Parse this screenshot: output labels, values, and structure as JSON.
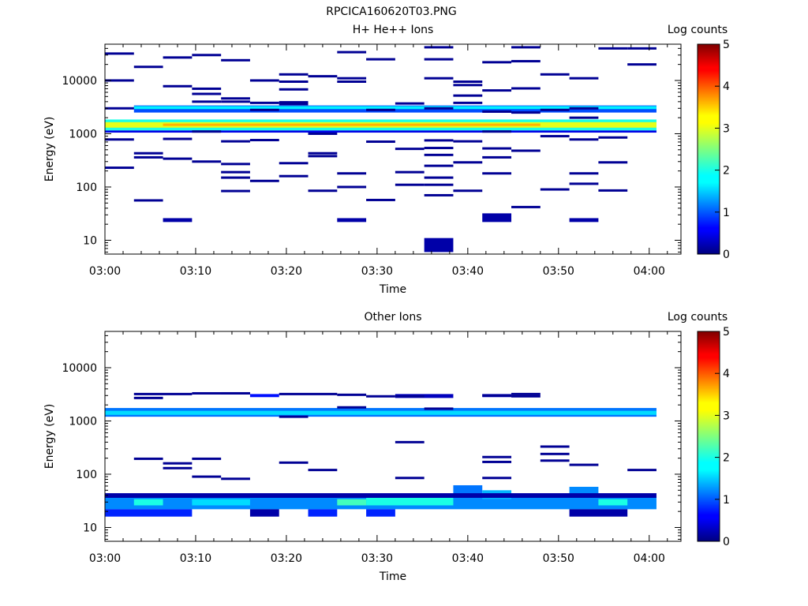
{
  "figure_title": "RPCICA160620T03.PNG",
  "chart_data": [
    {
      "type": "heatmap",
      "title": "H+ He++ Ions",
      "xlabel": "Time",
      "ylabel": "Energy (eV)",
      "x_ticks": [
        "03:00",
        "03:10",
        "03:20",
        "03:30",
        "03:40",
        "03:50",
        "04:00"
      ],
      "y_scale": "log",
      "y_ticks": [
        10,
        100,
        1000,
        10000
      ],
      "y_tick_labels": [
        "10",
        "100",
        "1000",
        "10000"
      ],
      "ylim_eV": [
        5.5,
        48000
      ],
      "colorbar_label": "Log counts",
      "colorbar_range": [
        0,
        5
      ],
      "colorbar_ticks": [
        "0",
        "1",
        "2",
        "3",
        "4",
        "5"
      ],
      "time_bins_start_min": [
        0,
        3.2,
        6.4,
        9.6,
        12.8,
        16,
        19.2,
        22.4,
        25.6,
        28.8,
        32,
        35.2,
        38.4,
        41.6,
        44.8,
        48,
        51.2,
        54.4,
        57.6
      ],
      "bin_width_min": 3.2,
      "cells": [
        {
          "e_lo": 1150,
          "e_hi": 1850,
          "v": 2.0,
          "span": [
            0,
            19
          ]
        },
        {
          "e_lo": 1300,
          "e_hi": 1650,
          "v": 3.0,
          "span": [
            0,
            19
          ]
        },
        {
          "e_lo": 1400,
          "e_hi": 1550,
          "v": 3.5,
          "span": [
            2,
            15
          ]
        },
        {
          "e_lo": 2500,
          "e_hi": 3400,
          "v": 1.0,
          "span": [
            1,
            19
          ]
        },
        {
          "e_lo": 2900,
          "e_hi": 3300,
          "v": 1.8,
          "span": [
            1,
            19
          ]
        },
        {
          "e_lo": 1050,
          "e_hi": 1150,
          "v": 0.5,
          "span": [
            0,
            19
          ]
        },
        {
          "e_lo": 22,
          "e_hi": 26,
          "v": 0.2,
          "span": [
            2,
            3
          ]
        },
        {
          "e_lo": 22,
          "e_hi": 26,
          "v": 0.2,
          "span": [
            8,
            9
          ]
        },
        {
          "e_lo": 22,
          "e_hi": 32,
          "v": 0.2,
          "span": [
            13,
            14
          ]
        },
        {
          "e_lo": 22,
          "e_hi": 26,
          "v": 0.2,
          "span": [
            16,
            17
          ]
        },
        {
          "e_lo": 6,
          "e_hi": 11,
          "v": 0.2,
          "span": [
            11,
            12
          ]
        }
      ],
      "lines_eV": [
        32000,
        10000,
        3000,
        780,
        230,
        18000,
        56,
        430,
        360,
        27000,
        7800,
        800,
        340,
        30000,
        7000,
        5600,
        4000,
        1100,
        300,
        24000,
        4600,
        4000,
        720,
        270,
        190,
        150,
        84,
        3800,
        2800,
        130,
        10000,
        760,
        13000,
        9500,
        6800,
        3600,
        3900,
        280,
        160,
        85,
        430,
        380,
        12000,
        1000,
        34000,
        11000,
        9500,
        180,
        100,
        25000,
        2800,
        710,
        57,
        3700,
        520,
        190,
        110,
        42000,
        25000,
        11000,
        3000,
        750,
        540,
        400,
        250,
        150,
        110,
        70,
        9500,
        8200,
        5200,
        3800,
        720,
        290,
        85,
        22000,
        6500,
        2600,
        1100,
        530,
        360,
        180,
        42000,
        23000,
        7100,
        2500,
        480,
        42,
        13000,
        2800,
        900,
        90,
        11000,
        2000,
        180,
        115,
        3000,
        780,
        40000,
        850,
        290,
        86,
        20000,
        40000
      ],
      "lines_t": [
        [
          0,
          1
        ],
        [
          0,
          1
        ],
        [
          0,
          1
        ],
        [
          0,
          1
        ],
        [
          0,
          1
        ],
        [
          1,
          2
        ],
        [
          1,
          2
        ],
        [
          1,
          2
        ],
        [
          1,
          2
        ],
        [
          2,
          3
        ],
        [
          2,
          3
        ],
        [
          2,
          3
        ],
        [
          2,
          3
        ],
        [
          3,
          4
        ],
        [
          3,
          4
        ],
        [
          3,
          4
        ],
        [
          3,
          4
        ],
        [
          3,
          4
        ],
        [
          3,
          4
        ],
        [
          4,
          5
        ],
        [
          4,
          5
        ],
        [
          4,
          5
        ],
        [
          4,
          5
        ],
        [
          4,
          5
        ],
        [
          4,
          5
        ],
        [
          4,
          5
        ],
        [
          4,
          5
        ],
        [
          5,
          6
        ],
        [
          5,
          6
        ],
        [
          5,
          6
        ],
        [
          5,
          6
        ],
        [
          5,
          6
        ],
        [
          6,
          7
        ],
        [
          6,
          7
        ],
        [
          6,
          7
        ],
        [
          6,
          7
        ],
        [
          6,
          7
        ],
        [
          6,
          7
        ],
        [
          6,
          7
        ],
        [
          7,
          8
        ],
        [
          7,
          8
        ],
        [
          7,
          8
        ],
        [
          7,
          8
        ],
        [
          7,
          8
        ],
        [
          8,
          9
        ],
        [
          8,
          9
        ],
        [
          8,
          9
        ],
        [
          8,
          9
        ],
        [
          8,
          9
        ],
        [
          9,
          10
        ],
        [
          9,
          10
        ],
        [
          9,
          10
        ],
        [
          9,
          10
        ],
        [
          10,
          11
        ],
        [
          10,
          11
        ],
        [
          10,
          11
        ],
        [
          10,
          11
        ],
        [
          11,
          12
        ],
        [
          11,
          12
        ],
        [
          11,
          12
        ],
        [
          11,
          12
        ],
        [
          11,
          12
        ],
        [
          11,
          12
        ],
        [
          11,
          12
        ],
        [
          11,
          12
        ],
        [
          11,
          12
        ],
        [
          11,
          12
        ],
        [
          11,
          12
        ],
        [
          12,
          13
        ],
        [
          12,
          13
        ],
        [
          12,
          13
        ],
        [
          12,
          13
        ],
        [
          12,
          13
        ],
        [
          12,
          13
        ],
        [
          12,
          13
        ],
        [
          13,
          14
        ],
        [
          13,
          14
        ],
        [
          13,
          14
        ],
        [
          13,
          14
        ],
        [
          13,
          14
        ],
        [
          13,
          14
        ],
        [
          13,
          14
        ],
        [
          14,
          15
        ],
        [
          14,
          15
        ],
        [
          14,
          15
        ],
        [
          14,
          15
        ],
        [
          14,
          15
        ],
        [
          14,
          15
        ],
        [
          15,
          16
        ],
        [
          15,
          16
        ],
        [
          15,
          16
        ],
        [
          15,
          16
        ],
        [
          16,
          17
        ],
        [
          16,
          17
        ],
        [
          16,
          17
        ],
        [
          16,
          17
        ],
        [
          16,
          17
        ],
        [
          16,
          17
        ],
        [
          17,
          18
        ],
        [
          17,
          18
        ],
        [
          17,
          18
        ],
        [
          17,
          18
        ],
        [
          18,
          19
        ],
        [
          18,
          19
        ]
      ]
    },
    {
      "type": "heatmap",
      "title": "Other Ions",
      "xlabel": "Time",
      "ylabel": "Energy (eV)",
      "x_ticks": [
        "03:00",
        "03:10",
        "03:20",
        "03:30",
        "03:40",
        "03:50",
        "04:00"
      ],
      "y_scale": "log",
      "y_ticks": [
        10,
        100,
        1000,
        10000
      ],
      "y_tick_labels": [
        "10",
        "100",
        "1000",
        "10000"
      ],
      "ylim_eV": [
        5.5,
        48000
      ],
      "colorbar_label": "Log counts",
      "colorbar_range": [
        0,
        5
      ],
      "colorbar_ticks": [
        "0",
        "1",
        "2",
        "3",
        "4",
        "5"
      ],
      "time_bins_start_min": [
        0,
        3.2,
        6.4,
        9.6,
        12.8,
        16,
        19.2,
        22.4,
        25.6,
        28.8,
        32,
        35.2,
        38.4,
        41.6,
        44.8,
        48,
        51.2,
        54.4,
        57.6
      ],
      "bin_width_min": 3.2,
      "cells": [
        {
          "e_lo": 1200,
          "e_hi": 1750,
          "v": 1.2,
          "span": [
            0,
            19
          ]
        },
        {
          "e_lo": 1300,
          "e_hi": 1550,
          "v": 1.7,
          "span": [
            0,
            19
          ]
        },
        {
          "e_lo": 2800,
          "e_hi": 3200,
          "v": 0.7,
          "span": [
            5,
            6
          ]
        },
        {
          "e_lo": 2700,
          "e_hi": 3200,
          "v": 0.3,
          "span": [
            10,
            12
          ]
        },
        {
          "e_lo": 2800,
          "e_hi": 3200,
          "v": 0.3,
          "span": [
            13,
            14
          ]
        },
        {
          "e_lo": 22,
          "e_hi": 38,
          "v": 1.3,
          "span": [
            0,
            19
          ]
        },
        {
          "e_lo": 26,
          "e_hi": 34,
          "v": 2.0,
          "span": [
            1,
            2
          ]
        },
        {
          "e_lo": 26,
          "e_hi": 34,
          "v": 1.7,
          "span": [
            3,
            5
          ]
        },
        {
          "e_lo": 26,
          "e_hi": 34,
          "v": 2.2,
          "span": [
            8,
            9
          ]
        },
        {
          "e_lo": 26,
          "e_hi": 38,
          "v": 2.0,
          "span": [
            9,
            12
          ]
        },
        {
          "e_lo": 38,
          "e_hi": 62,
          "v": 1.2,
          "span": [
            12,
            13
          ]
        },
        {
          "e_lo": 34,
          "e_hi": 50,
          "v": 1.5,
          "span": [
            13,
            14
          ]
        },
        {
          "e_lo": 38,
          "e_hi": 58,
          "v": 1.3,
          "span": [
            16,
            17
          ]
        },
        {
          "e_lo": 26,
          "e_hi": 34,
          "v": 2.0,
          "span": [
            17,
            18
          ]
        },
        {
          "e_lo": 16,
          "e_hi": 22,
          "v": 0.8,
          "span": [
            0,
            3
          ]
        },
        {
          "e_lo": 16,
          "e_hi": 22,
          "v": 0.2,
          "span": [
            5,
            6
          ]
        },
        {
          "e_lo": 16,
          "e_hi": 22,
          "v": 0.8,
          "span": [
            7,
            8
          ]
        },
        {
          "e_lo": 16,
          "e_hi": 22,
          "v": 0.8,
          "span": [
            9,
            10
          ]
        },
        {
          "e_lo": 16,
          "e_hi": 22,
          "v": 0.2,
          "span": [
            16,
            18
          ]
        },
        {
          "e_lo": 36,
          "e_hi": 44,
          "v": 0.2,
          "span": [
            0,
            19
          ]
        }
      ],
      "lines_eV": [
        3200,
        2700,
        195,
        3300,
        160,
        130,
        3300,
        195,
        90,
        3200,
        82,
        3100,
        165,
        1200,
        2900,
        120,
        1800,
        2900,
        400,
        85,
        1700,
        3000,
        210,
        170,
        3200,
        2900,
        85,
        330,
        240,
        180,
        150,
        120
      ],
      "lines_t": [
        [
          1,
          3
        ],
        [
          1,
          2
        ],
        [
          1,
          2
        ],
        [
          3,
          5
        ],
        [
          2,
          3
        ],
        [
          2,
          3
        ],
        [
          4,
          5
        ],
        [
          3,
          4
        ],
        [
          3,
          4
        ],
        [
          6,
          8
        ],
        [
          4,
          5
        ],
        [
          8,
          9
        ],
        [
          6,
          7
        ],
        [
          6,
          7
        ],
        [
          9,
          10
        ],
        [
          7,
          8
        ],
        [
          8,
          9
        ],
        [
          10,
          11
        ],
        [
          10,
          11
        ],
        [
          10,
          11
        ],
        [
          11,
          12
        ],
        [
          13,
          14
        ],
        [
          13,
          14
        ],
        [
          13,
          14
        ],
        [
          14,
          15
        ],
        [
          14,
          15
        ],
        [
          13,
          14
        ],
        [
          15,
          16
        ],
        [
          15,
          16
        ],
        [
          15,
          16
        ],
        [
          16,
          17
        ],
        [
          18,
          19
        ]
      ]
    }
  ]
}
